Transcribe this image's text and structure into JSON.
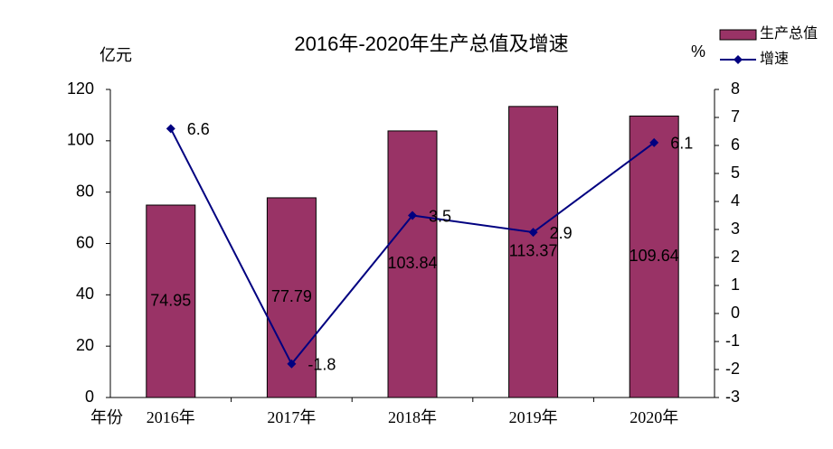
{
  "chart_data": {
    "type": "combo",
    "title": "2016年-2020年生产总值及增速",
    "y_label": "亿元",
    "y2_label": "%",
    "x_label": "年份",
    "categories": [
      "2016年",
      "2017年",
      "2018年",
      "2019年",
      "2020年"
    ],
    "series": [
      {
        "name": "生产总值",
        "type": "bar",
        "color": "#993366",
        "values": [
          74.95,
          77.79,
          103.84,
          113.37,
          109.64
        ]
      },
      {
        "name": "增速",
        "type": "line",
        "axis": "y2",
        "color": "#000080",
        "values": [
          6.6,
          -1.8,
          3.5,
          2.9,
          6.1
        ]
      }
    ],
    "ylim": [
      0,
      120
    ],
    "yticks": [
      0,
      20,
      40,
      60,
      80,
      100,
      120
    ],
    "y2lim": [
      -3,
      8
    ],
    "y2ticks": [
      -3,
      -2,
      -1,
      0,
      1,
      2,
      3,
      4,
      5,
      6,
      7,
      8
    ],
    "legend": "top-right"
  }
}
